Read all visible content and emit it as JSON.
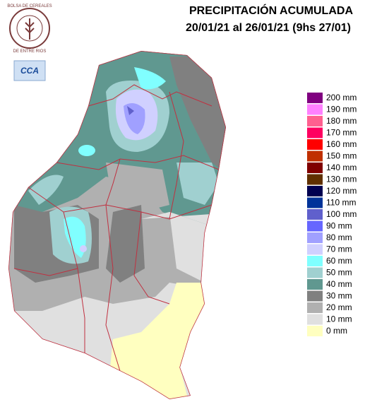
{
  "header": {
    "title": "PRECIPITACIÓN ACUMULADA",
    "subtitle": "20/01/21 al 26/01/21 (9hs 27/01)"
  },
  "logos": {
    "bolsa_top": "BOLSA DE CEREALES",
    "bolsa_bottom": "DE ENTRE RIOS",
    "cca": "CCA"
  },
  "legend": {
    "items": [
      {
        "label": "200 mm",
        "color": "#800080"
      },
      {
        "label": "190 mm",
        "color": "#ff80ff"
      },
      {
        "label": "180 mm",
        "color": "#ff6090"
      },
      {
        "label": "170 mm",
        "color": "#ff0060"
      },
      {
        "label": "160 mm",
        "color": "#ff0000"
      },
      {
        "label": "150 mm",
        "color": "#c03000"
      },
      {
        "label": "140 mm",
        "color": "#800000"
      },
      {
        "label": "130 mm",
        "color": "#603000"
      },
      {
        "label": "120 mm",
        "color": "#000050"
      },
      {
        "label": "110 mm",
        "color": "#003399"
      },
      {
        "label": "100 mm",
        "color": "#6060cc"
      },
      {
        "label": "90 mm",
        "color": "#6666ff"
      },
      {
        "label": "80 mm",
        "color": "#a0a0ff"
      },
      {
        "label": "70 mm",
        "color": "#d0d0ff"
      },
      {
        "label": "60 mm",
        "color": "#80ffff"
      },
      {
        "label": "50 mm",
        "color": "#a0d0d0"
      },
      {
        "label": "40 mm",
        "color": "#609890"
      },
      {
        "label": "30 mm",
        "color": "#808080"
      },
      {
        "label": "20 mm",
        "color": "#b0b0b0"
      },
      {
        "label": "10 mm",
        "color": "#e0e0e0"
      },
      {
        "label": "0 mm",
        "color": "#ffffc0"
      }
    ]
  }
}
